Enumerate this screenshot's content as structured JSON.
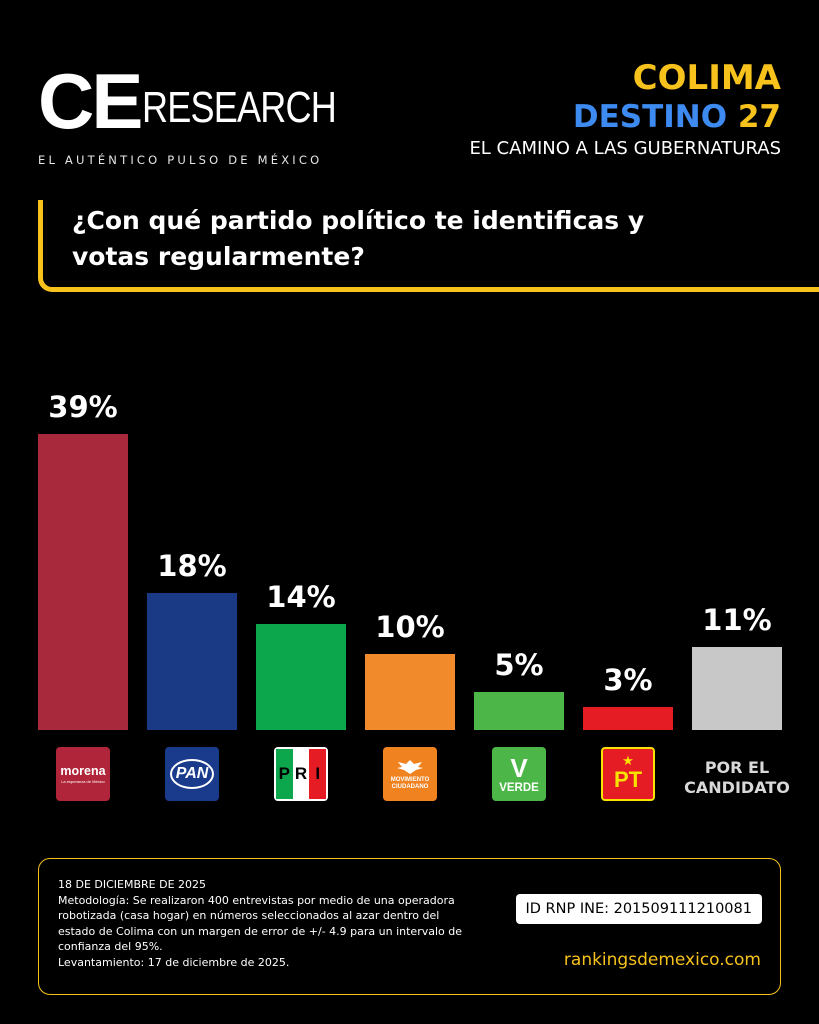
{
  "header": {
    "logo_ce": "CE",
    "logo_research": "RESEARCH",
    "tagline": "EL AUTÉNTICO PULSO DE MÉXICO",
    "state": "COLIMA",
    "destino_word": "DESTINO",
    "destino_num": "27",
    "subtitle": "EL CAMINO A LAS GUBERNATURAS"
  },
  "question": "¿Con qué partido político te identificas y votas regularmente?",
  "parties": {
    "morena": "morena",
    "morena_small": "La esperanza de México",
    "pan": "PAN",
    "pri_p": "P",
    "pri_r": "R",
    "pri_i": "I",
    "mc_line1": "MOVIMIENTO",
    "mc_line2": "CIUDADANO",
    "verde_v": "V",
    "verde": "VERDE",
    "pt": "PT",
    "candidato": "POR EL CANDIDATO"
  },
  "chart_data": {
    "type": "bar",
    "categories": [
      "morena",
      "PAN",
      "PRI",
      "Movimiento Ciudadano",
      "VERDE",
      "PT",
      "POR EL CANDIDATO"
    ],
    "values": [
      39,
      18,
      14,
      10,
      5,
      3,
      11
    ],
    "value_labels": [
      "39%",
      "18%",
      "14%",
      "10%",
      "5%",
      "3%",
      "11%"
    ],
    "colors": [
      "#a8283c",
      "#1b3a86",
      "#0ca64c",
      "#f08a2a",
      "#4cb748",
      "#e51c24",
      "#c8c8c8"
    ],
    "ylim": [
      0,
      39
    ]
  },
  "footer": {
    "date": "18 DE DICIEMBRE DE 2025",
    "methodology": "Metodología: Se realizaron 400 entrevistas por medio de una operadora robotizada (casa hogar) en números seleccionados al azar dentro del estado de Colima con un margen de error de +/- 4.9 para un intervalo de confianza del 95%.",
    "levantamiento": "Levantamiento: 17 de diciembre de 2025.",
    "rnp": "ID RNP INE: 201509111210081",
    "website": "rankingsdemexico.com"
  }
}
